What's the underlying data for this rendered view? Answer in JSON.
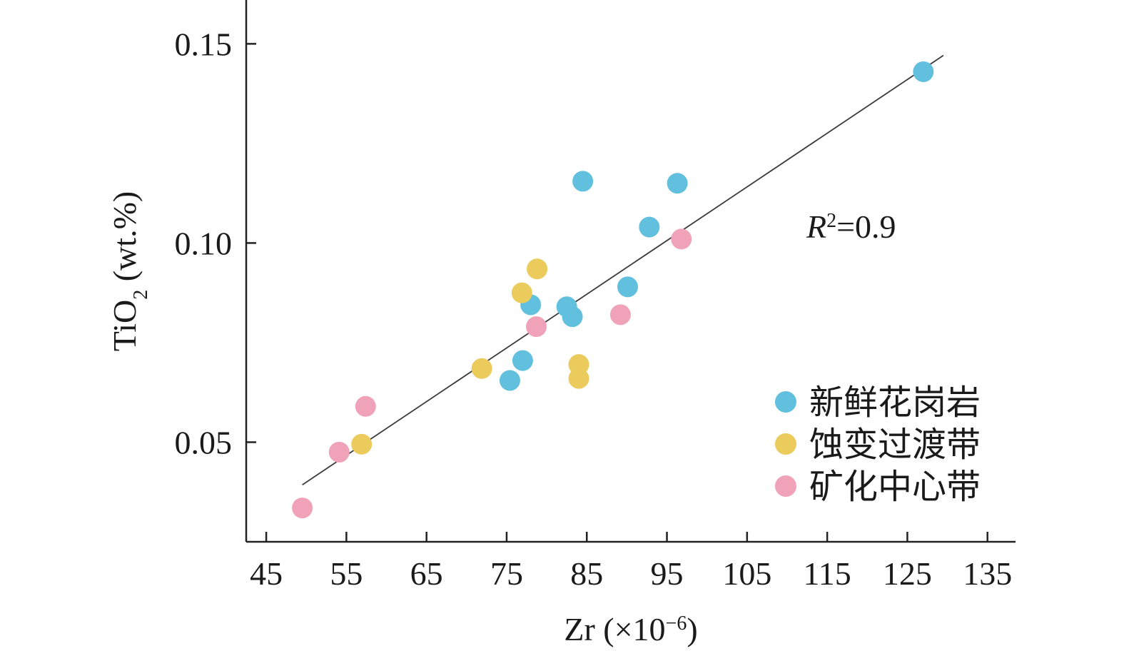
{
  "chart_data": {
    "type": "scatter",
    "xlabel": {
      "base": "Zr (×10",
      "sup": "−6",
      "tail": ")"
    },
    "ylabel": {
      "base": "TiO",
      "sub": "2",
      "tail": " (wt.%)"
    },
    "x_ticks": [
      45,
      55,
      65,
      75,
      85,
      95,
      105,
      115,
      125,
      135
    ],
    "x_tick_labels": [
      "45",
      "55",
      "65",
      "75",
      "85",
      "95",
      "105",
      "115",
      "125",
      "135"
    ],
    "y_ticks": [
      0.05,
      0.1,
      0.15
    ],
    "y_tick_labels": [
      "0.05",
      "0.10",
      "0.15"
    ],
    "xlim": [
      42.5,
      138.5
    ],
    "ylim": [
      0.025,
      0.161
    ],
    "grid": false,
    "legend_position": "bottom-right",
    "annotation": {
      "var": "R",
      "sup": "2",
      "rest": "=0.9"
    },
    "trendline": {
      "x": [
        49.5,
        129.5
      ],
      "y": [
        0.0393,
        0.1471
      ]
    },
    "series": [
      {
        "name": "新鲜花岗岩",
        "color": "#62c0df",
        "points": [
          [
            127.0,
            0.143
          ],
          [
            84.5,
            0.1155
          ],
          [
            96.3,
            0.115
          ],
          [
            92.8,
            0.104
          ],
          [
            90.1,
            0.089
          ],
          [
            78.0,
            0.0845
          ],
          [
            82.5,
            0.084
          ],
          [
            83.2,
            0.0815
          ],
          [
            77.0,
            0.0705
          ],
          [
            75.4,
            0.0655
          ]
        ]
      },
      {
        "name": "蚀变过渡带",
        "color": "#eccb5d",
        "points": [
          [
            78.8,
            0.0935
          ],
          [
            76.9,
            0.0875
          ],
          [
            71.9,
            0.0685
          ],
          [
            84.0,
            0.0695
          ],
          [
            84.0,
            0.066
          ],
          [
            56.9,
            0.0495
          ]
        ]
      },
      {
        "name": "矿化中心带",
        "color": "#f0a3b8",
        "points": [
          [
            96.8,
            0.101
          ],
          [
            89.2,
            0.082
          ],
          [
            78.7,
            0.079
          ],
          [
            57.4,
            0.059
          ],
          [
            54.1,
            0.0475
          ],
          [
            49.5,
            0.0335
          ]
        ]
      }
    ]
  }
}
